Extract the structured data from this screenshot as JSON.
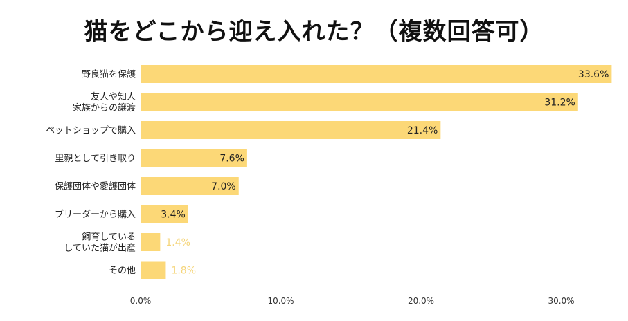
{
  "chart_data": {
    "type": "bar",
    "orientation": "horizontal",
    "title": "猫をどこから迎え入れた？（複数回答可）",
    "categories": [
      [
        "野良猫を保護"
      ],
      [
        "友人や知人",
        "家族からの譲渡"
      ],
      [
        "ペットショップで購入"
      ],
      [
        "里親として引き取り"
      ],
      [
        "保護団体や愛護団体"
      ],
      [
        "ブリーダーから購入"
      ],
      [
        "飼育している",
        "していた猫が出産"
      ],
      [
        "その他"
      ]
    ],
    "values": [
      33.6,
      31.2,
      21.4,
      7.6,
      7.0,
      3.4,
      1.4,
      1.8
    ],
    "value_labels": [
      "33.6%",
      "31.2%",
      "21.4%",
      "7.6%",
      "7.0%",
      "3.4%",
      "1.4%",
      "1.8%"
    ],
    "xlim": [
      0,
      34
    ],
    "xticks": [
      0,
      10,
      20,
      30
    ],
    "xtick_labels": [
      "0.0%",
      "10.0%",
      "20.0%",
      "30.0%"
    ],
    "bar_color": "#fcd877",
    "outside_label_color": "#f5d57a",
    "grid": false,
    "xlabel": "",
    "ylabel": ""
  }
}
